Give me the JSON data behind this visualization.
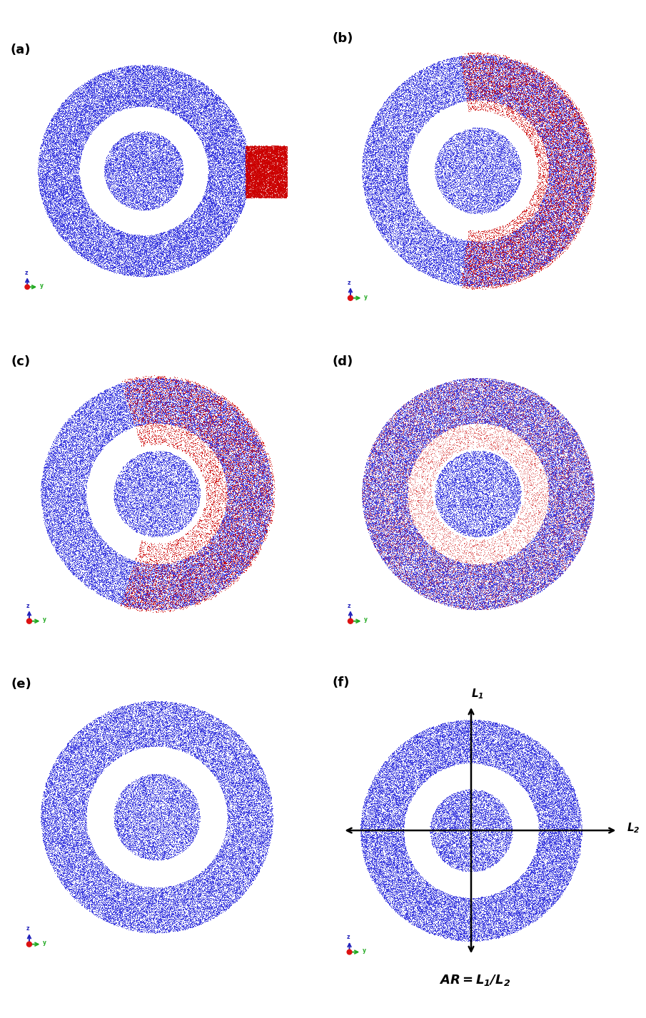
{
  "panels": [
    "(a)",
    "(b)",
    "(c)",
    "(d)",
    "(e)",
    "(f)"
  ],
  "panel_label_fontsize": 13,
  "background_color": "#ffffff",
  "blue_color": "#3333dd",
  "red_color": "#cc0000",
  "R_outer": 1.0,
  "R_shell_inner": 0.62,
  "R_inner_sphere": 0.38,
  "n_outer_shell": 40000,
  "n_inner_sphere": 8000,
  "n_red_block": 12000,
  "dot_size_blue": 0.5,
  "dot_size_red": 0.5,
  "alpha_blue": 0.85,
  "alpha_red": 0.9
}
